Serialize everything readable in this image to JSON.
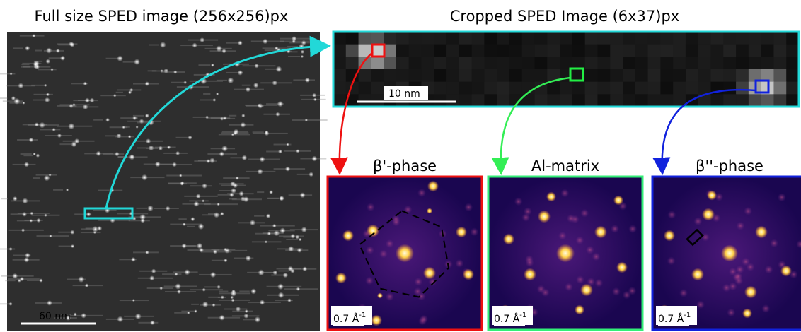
{
  "full": {
    "title": "Full size SPED image (256x256)px",
    "scale_bar": "60 nm"
  },
  "cropped": {
    "title": "Cropped SPED Image (6x37)px",
    "scale_bar": "10 nm"
  },
  "patterns": [
    {
      "label": "β'-phase",
      "scale_text": "0.7 Å",
      "scale_exp": "-1"
    },
    {
      "label": "Al-matrix",
      "scale_text": "0.7 Å",
      "scale_exp": "-1"
    },
    {
      "label": "β''-phase",
      "scale_text": "0.7 Å",
      "scale_exp": "-1"
    }
  ]
}
